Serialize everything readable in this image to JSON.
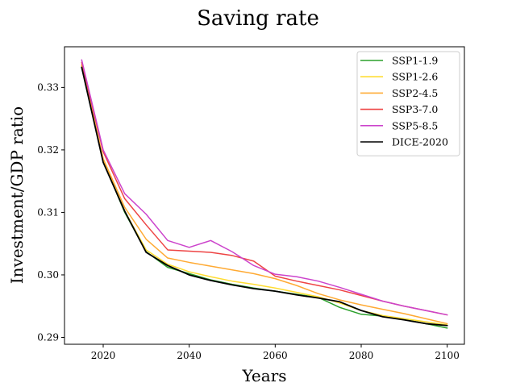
{
  "chart_data": {
    "type": "line",
    "title": "Saving rate",
    "xlabel": "Years",
    "ylabel": "Investment/GDP ratio",
    "xlim": [
      2011,
      2104
    ],
    "ylim": [
      0.2889,
      0.3365
    ],
    "xticks": [
      2020,
      2040,
      2060,
      2080,
      2100
    ],
    "xtick_labels": [
      "2020",
      "2040",
      "2060",
      "2080",
      "2100"
    ],
    "yticks": [
      0.29,
      0.3,
      0.31,
      0.32,
      0.33
    ],
    "ytick_labels": [
      "0.29",
      "0.30",
      "0.31",
      "0.32",
      "0.33"
    ],
    "grid": false,
    "legend_position": "top-right",
    "x": [
      2015,
      2020,
      2025,
      2030,
      2035,
      2040,
      2045,
      2050,
      2055,
      2060,
      2065,
      2070,
      2075,
      2080,
      2085,
      2090,
      2095,
      2100
    ],
    "series": [
      {
        "name": "SSP1-1.9",
        "color": "#2ca02c",
        "values": [
          0.3333,
          0.3182,
          0.31,
          0.3037,
          0.3012,
          0.3002,
          0.2992,
          0.2985,
          0.2979,
          0.2974,
          0.2969,
          0.2964,
          0.2948,
          0.2937,
          0.2934,
          0.2929,
          0.2922,
          0.2915
        ]
      },
      {
        "name": "SSP1-2.6",
        "color": "#ffdd33",
        "values": [
          0.3334,
          0.3183,
          0.3102,
          0.304,
          0.3017,
          0.3005,
          0.2997,
          0.299,
          0.2985,
          0.2979,
          0.2972,
          0.2965,
          0.2955,
          0.2943,
          0.2935,
          0.293,
          0.2925,
          0.292
        ]
      },
      {
        "name": "SSP2-4.5",
        "color": "#ffaa33",
        "values": [
          0.3336,
          0.3186,
          0.3108,
          0.3057,
          0.3027,
          0.302,
          0.3014,
          0.3008,
          0.3002,
          0.2994,
          0.2983,
          0.297,
          0.296,
          0.2952,
          0.2945,
          0.2938,
          0.293,
          0.2922
        ]
      },
      {
        "name": "SSP3-7.0",
        "color": "#ee4444",
        "values": [
          0.334,
          0.3197,
          0.3122,
          0.308,
          0.304,
          0.3038,
          0.3036,
          0.3031,
          0.3022,
          0.2998,
          0.299,
          0.2983,
          0.2976,
          0.2967,
          0.2958,
          0.295,
          0.2943,
          0.2936
        ]
      },
      {
        "name": "SSP5-8.5",
        "color": "#cc44cc",
        "values": [
          0.3344,
          0.32,
          0.313,
          0.3097,
          0.3055,
          0.3044,
          0.3055,
          0.3037,
          0.3015,
          0.3001,
          0.2997,
          0.299,
          0.298,
          0.2969,
          0.2958,
          0.295,
          0.2943,
          0.2936
        ]
      },
      {
        "name": "DICE-2020",
        "color": "#000000",
        "values": [
          0.3332,
          0.318,
          0.3102,
          0.3036,
          0.3015,
          0.3,
          0.2991,
          0.2984,
          0.2978,
          0.2974,
          0.2968,
          0.2963,
          0.2957,
          0.2943,
          0.2933,
          0.2928,
          0.2922,
          0.2919
        ]
      }
    ]
  }
}
